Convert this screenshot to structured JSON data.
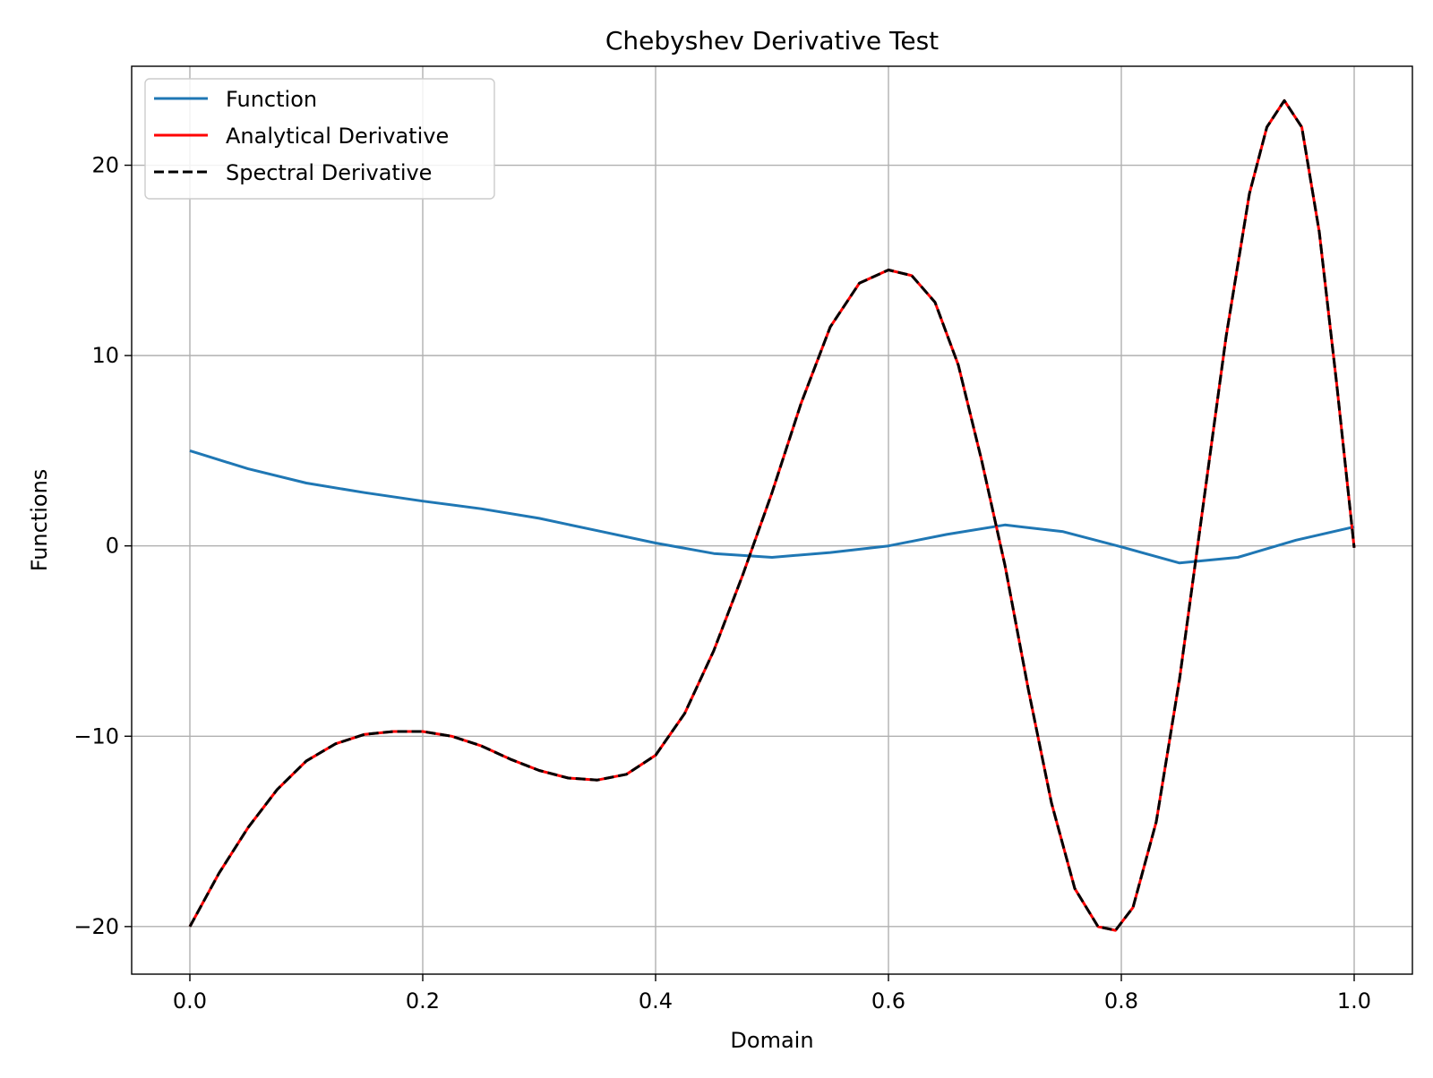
{
  "chart_data": {
    "type": "line",
    "title": "Chebyshev Derivative Test",
    "xlabel": "Domain",
    "ylabel": "Functions",
    "xlim": [
      -0.05,
      1.05
    ],
    "ylim": [
      -22.5,
      25.2
    ],
    "xticks": [
      {
        "value": 0.0,
        "label": "0.0"
      },
      {
        "value": 0.2,
        "label": "0.2"
      },
      {
        "value": 0.4,
        "label": "0.4"
      },
      {
        "value": 0.6,
        "label": "0.6"
      },
      {
        "value": 0.8,
        "label": "0.8"
      },
      {
        "value": 1.0,
        "label": "1.0"
      }
    ],
    "yticks": [
      {
        "value": -20,
        "label": "−20"
      },
      {
        "value": -10,
        "label": "−10"
      },
      {
        "value": 0,
        "label": "0"
      },
      {
        "value": 10,
        "label": "10"
      },
      {
        "value": 20,
        "label": "20"
      }
    ],
    "grid": true,
    "legend_position": "top-left",
    "series": [
      {
        "name": "Function",
        "color": "#1f77b4",
        "style": "solid",
        "x": [
          0.0,
          0.05,
          0.1,
          0.15,
          0.2,
          0.25,
          0.3,
          0.35,
          0.4,
          0.45,
          0.5,
          0.55,
          0.6,
          0.65,
          0.7,
          0.75,
          0.8,
          0.85,
          0.9,
          0.95,
          1.0
        ],
        "y": [
          5.0,
          4.05,
          3.3,
          2.8,
          2.35,
          1.95,
          1.45,
          0.8,
          0.15,
          -0.4,
          -0.6,
          -0.35,
          0.0,
          0.6,
          1.1,
          0.75,
          -0.05,
          -0.9,
          -0.6,
          0.3,
          1.0
        ]
      },
      {
        "name": "Analytical Derivative",
        "color": "#ff0000",
        "style": "solid",
        "x": [
          0.0,
          0.025,
          0.05,
          0.075,
          0.1,
          0.125,
          0.15,
          0.175,
          0.2,
          0.225,
          0.25,
          0.275,
          0.3,
          0.325,
          0.35,
          0.375,
          0.4,
          0.425,
          0.45,
          0.475,
          0.5,
          0.525,
          0.55,
          0.575,
          0.6,
          0.62,
          0.64,
          0.66,
          0.68,
          0.7,
          0.72,
          0.74,
          0.76,
          0.78,
          0.795,
          0.81,
          0.83,
          0.85,
          0.87,
          0.89,
          0.91,
          0.925,
          0.94,
          0.955,
          0.97,
          0.985,
          1.0
        ],
        "y": [
          -20.0,
          -17.2,
          -14.8,
          -12.8,
          -11.3,
          -10.4,
          -9.9,
          -9.75,
          -9.75,
          -10.0,
          -10.5,
          -11.2,
          -11.8,
          -12.2,
          -12.3,
          -12.0,
          -11.0,
          -8.8,
          -5.5,
          -1.5,
          2.8,
          7.5,
          11.5,
          13.8,
          14.5,
          14.2,
          12.8,
          9.5,
          4.5,
          -1.0,
          -7.5,
          -13.5,
          -18.0,
          -20.0,
          -20.2,
          -19.0,
          -14.5,
          -7.0,
          2.0,
          11.0,
          18.5,
          22.0,
          23.4,
          22.0,
          16.5,
          8.5,
          -0.1
        ]
      },
      {
        "name": "Spectral Derivative",
        "color": "#000000",
        "style": "dashed",
        "x": [
          0.0,
          0.025,
          0.05,
          0.075,
          0.1,
          0.125,
          0.15,
          0.175,
          0.2,
          0.225,
          0.25,
          0.275,
          0.3,
          0.325,
          0.35,
          0.375,
          0.4,
          0.425,
          0.45,
          0.475,
          0.5,
          0.525,
          0.55,
          0.575,
          0.6,
          0.62,
          0.64,
          0.66,
          0.68,
          0.7,
          0.72,
          0.74,
          0.76,
          0.78,
          0.795,
          0.81,
          0.83,
          0.85,
          0.87,
          0.89,
          0.91,
          0.925,
          0.94,
          0.955,
          0.97,
          0.985,
          1.0
        ],
        "y": [
          -20.0,
          -17.2,
          -14.8,
          -12.8,
          -11.3,
          -10.4,
          -9.9,
          -9.75,
          -9.75,
          -10.0,
          -10.5,
          -11.2,
          -11.8,
          -12.2,
          -12.3,
          -12.0,
          -11.0,
          -8.8,
          -5.5,
          -1.5,
          2.8,
          7.5,
          11.5,
          13.8,
          14.5,
          14.2,
          12.8,
          9.5,
          4.5,
          -1.0,
          -7.5,
          -13.5,
          -18.0,
          -20.0,
          -20.2,
          -19.0,
          -14.5,
          -7.0,
          2.0,
          11.0,
          18.5,
          22.0,
          23.4,
          22.0,
          16.5,
          8.5,
          -0.1
        ]
      }
    ]
  }
}
